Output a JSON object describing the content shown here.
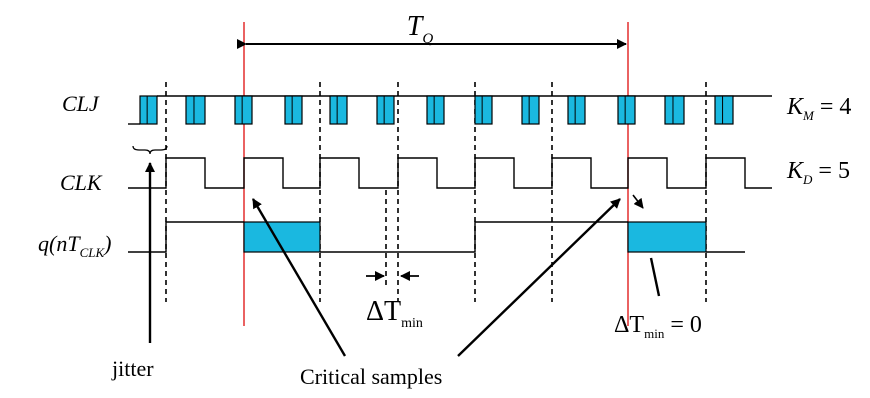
{
  "diagram": {
    "period_label": {
      "main": "T",
      "sub": "Q"
    },
    "signals": {
      "clj": "CLJ",
      "clk": "CLK",
      "q": {
        "prefix": "q(nT",
        "sub": "CLK",
        "suffix": ")"
      }
    },
    "parameters": {
      "km": {
        "main": "K",
        "sub": "M",
        "rest": " = 4"
      },
      "kd": {
        "main": "K",
        "sub": "D",
        "rest": " = 5"
      }
    },
    "delta_labels": {
      "mid": {
        "delta": "ΔT",
        "sub": "min"
      },
      "right": {
        "delta": "ΔT",
        "sub": "min",
        "rest": " = 0"
      }
    },
    "annotations": {
      "jitter": "jitter",
      "critical": "Critical samples"
    },
    "colors": {
      "pulse_fill": "#1ab8e0",
      "critical_line": "#e02020"
    }
  }
}
